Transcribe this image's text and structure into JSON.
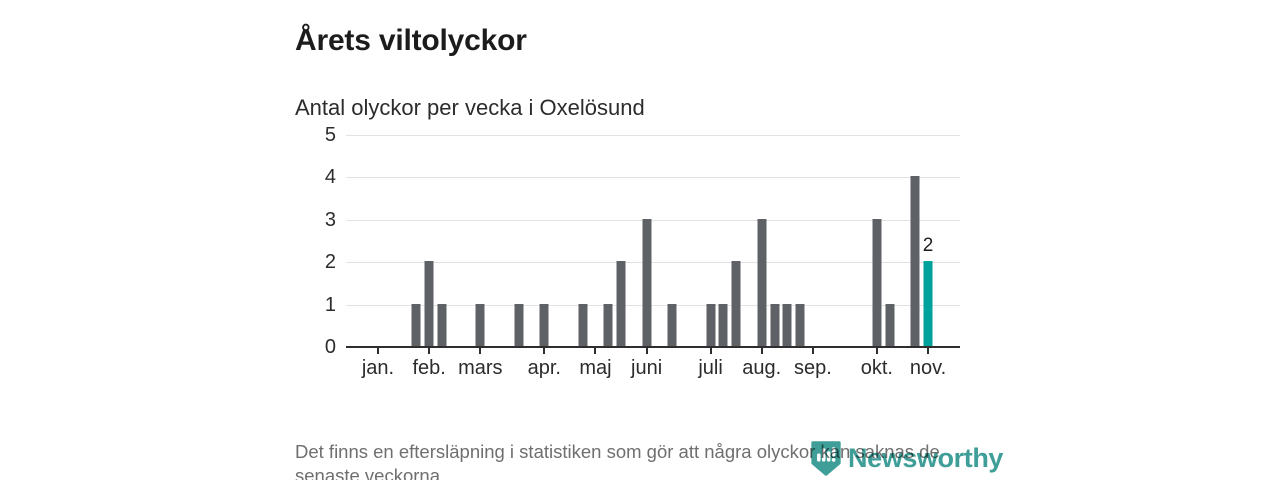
{
  "header": {
    "title": "Årets viltolyckor",
    "subtitle": "Antal olyckor per vecka i Oxelösund"
  },
  "chart_data": {
    "type": "bar",
    "title": "Årets viltolyckor",
    "subtitle": "Antal olyckor per vecka i Oxelösund",
    "xlabel": "",
    "ylabel": "",
    "x_unit": "vecka",
    "ylim": [
      0,
      5
    ],
    "y_ticks": [
      0,
      1,
      2,
      3,
      4,
      5
    ],
    "grid": "horizontal",
    "legend": "none",
    "lead_empty_slots": 2,
    "weeks_start": 1,
    "values": [
      0,
      0,
      0,
      1,
      2,
      1,
      0,
      0,
      1,
      0,
      0,
      1,
      0,
      1,
      0,
      0,
      1,
      0,
      1,
      2,
      0,
      3,
      0,
      1,
      0,
      0,
      1,
      1,
      2,
      0,
      3,
      1,
      1,
      1,
      0,
      0,
      0,
      0,
      0,
      3,
      1,
      0,
      4,
      2,
      0,
      0
    ],
    "month_ticks": [
      {
        "label": "jan.",
        "week": 1
      },
      {
        "label": "feb.",
        "week": 5
      },
      {
        "label": "mars",
        "week": 9
      },
      {
        "label": "apr.",
        "week": 14
      },
      {
        "label": "maj",
        "week": 18
      },
      {
        "label": "juni",
        "week": 22
      },
      {
        "label": "juli",
        "week": 27
      },
      {
        "label": "aug.",
        "week": 31
      },
      {
        "label": "sep.",
        "week": 35
      },
      {
        "label": "okt.",
        "week": 40
      },
      {
        "label": "nov.",
        "week": 44
      }
    ],
    "highlight_week": 44,
    "highlight_value_label": "2"
  },
  "footer": {
    "note_lines": [
      "Det finns en eftersläpning i statistiken som gör att några olyckor kan saknas de",
      "senaste veckorna."
    ],
    "brand": "Newsworthy"
  },
  "colors": {
    "bar": "#5e6266",
    "highlight": "#00a29b",
    "axis": "#2e2e2e",
    "grid": "#e2e2e2",
    "text_dark": "#2c2c2c",
    "title": "#1c1c1c",
    "footer_text": "#6f6f6f",
    "brand": "#3f9e98"
  }
}
